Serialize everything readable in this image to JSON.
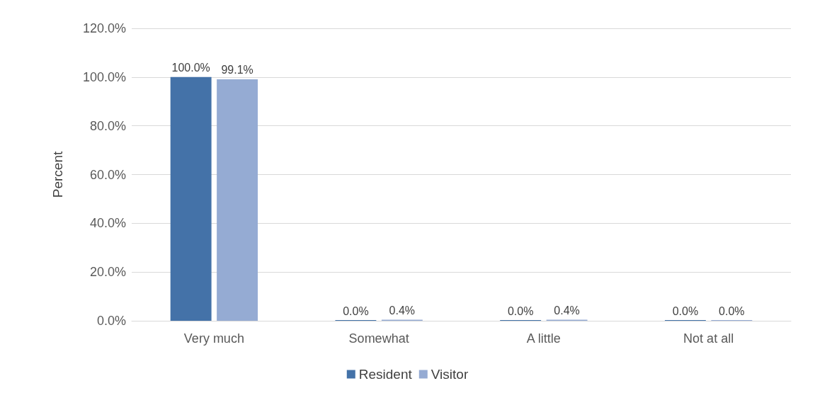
{
  "chart_data": {
    "type": "bar",
    "ylabel": "Percent",
    "categories": [
      "Very much",
      "Somewhat",
      "A little",
      "Not at all"
    ],
    "series": [
      {
        "name": "Resident",
        "color": "#4472a8",
        "values": [
          100.0,
          0.0,
          0.0,
          0.0
        ],
        "value_labels": [
          "100.0%",
          "0.0%",
          "0.0%",
          "0.0%"
        ]
      },
      {
        "name": "Visitor",
        "color": "#95abd3",
        "values": [
          99.1,
          0.4,
          0.4,
          0.0
        ],
        "value_labels": [
          "99.1%",
          "0.4%",
          "0.4%",
          "0.0%"
        ]
      }
    ],
    "ylim": [
      0,
      120
    ],
    "yticks": [
      {
        "value": 0,
        "label": "0.0%"
      },
      {
        "value": 20,
        "label": "20.0%"
      },
      {
        "value": 40,
        "label": "40.0%"
      },
      {
        "value": 60,
        "label": "60.0%"
      },
      {
        "value": 80,
        "label": "80.0%"
      },
      {
        "value": 100,
        "label": "100.0%"
      },
      {
        "value": 120,
        "label": "120.0%"
      }
    ],
    "grid": "y",
    "legend": "bottom"
  }
}
